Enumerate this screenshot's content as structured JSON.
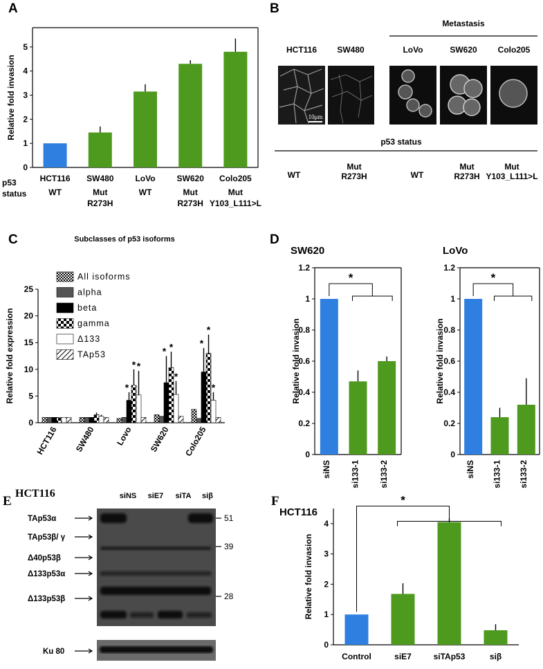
{
  "panel_labels": [
    "A",
    "B",
    "C",
    "D",
    "E",
    "F"
  ],
  "chart_data": [
    {
      "type": "bar",
      "categories": [
        "HCT116",
        "SW480",
        "LoVo",
        "SW620",
        "Colo205"
      ],
      "values": [
        1,
        1.45,
        3.15,
        4.3,
        4.8
      ],
      "errors": [
        0,
        0.25,
        0.3,
        0.15,
        0.55
      ],
      "colors": [
        "#2e7fe0",
        "#4e9a1f",
        "#4e9a1f",
        "#4e9a1f",
        "#4e9a1f"
      ],
      "ylabel": "Relative fold invasion",
      "ylim": [
        0,
        5.8
      ],
      "yticks": [
        0,
        1,
        2,
        3,
        4,
        5
      ],
      "row_label": [
        "p53",
        "status"
      ],
      "status": [
        [
          "WT"
        ],
        [
          "Mut",
          "R273H"
        ],
        [
          "WT"
        ],
        [
          "Mut",
          "R273H"
        ],
        [
          "Mut",
          "Y103_L111>L"
        ]
      ]
    },
    {
      "type": "grouped_bar",
      "title": "Subclasses of p53 isoforms",
      "categories": [
        "HCT116",
        "SW480",
        "Lovo",
        "SW620",
        "Colo205"
      ],
      "ylabel": "Relative fold expression",
      "ylim": [
        0,
        25
      ],
      "yticks": [
        0,
        5,
        10,
        15,
        20,
        25
      ],
      "series": [
        {
          "name": "All isoforms",
          "pattern": "checker-small",
          "color": "#000000",
          "values": [
            1,
            1,
            0.8,
            1.5,
            2.5
          ],
          "errors": [
            0,
            0,
            0,
            0,
            0
          ],
          "annotations": [
            null,
            null,
            null,
            null,
            null
          ]
        },
        {
          "name": "alpha",
          "pattern": "solid",
          "color": "#555555",
          "values": [
            1,
            1,
            1,
            1.2,
            0.8
          ],
          "errors": [
            0,
            0,
            0,
            0,
            0
          ],
          "annotations": [
            null,
            null,
            null,
            null,
            null
          ]
        },
        {
          "name": "beta",
          "pattern": "solid",
          "color": "#000000",
          "values": [
            1,
            1,
            4.2,
            7.5,
            9.5
          ],
          "errors": [
            0,
            0,
            1.5,
            5,
            4.5
          ],
          "annotations": [
            null,
            null,
            "*",
            "*",
            "*"
          ]
        },
        {
          "name": "gamma",
          "pattern": "checker-large",
          "color": "#000000",
          "values": [
            1,
            1.5,
            7,
            10.3,
            13
          ],
          "errors": [
            0,
            0.4,
            3,
            3,
            3.5
          ],
          "annotations": [
            null,
            null,
            "*",
            "*",
            "*"
          ]
        },
        {
          "name": "Δ133",
          "pattern": "solid",
          "color": "#ffffff",
          "values": [
            1,
            1.2,
            5.2,
            5.3,
            4.2
          ],
          "errors": [
            0,
            0.3,
            4.5,
            2.5,
            1.5
          ],
          "annotations": [
            null,
            null,
            "*",
            "*",
            "*"
          ]
        },
        {
          "name": "TAp53",
          "pattern": "hatch",
          "color": "#000000",
          "values": [
            1,
            1,
            1,
            1.2,
            1
          ],
          "errors": [
            0,
            0,
            0,
            0,
            0
          ],
          "annotations": [
            null,
            null,
            null,
            null,
            null
          ]
        }
      ]
    },
    {
      "type": "bar",
      "title": "SW620",
      "categories": [
        "siNS",
        "si133-1",
        "si133-2"
      ],
      "values": [
        1,
        0.47,
        0.6
      ],
      "errors": [
        0,
        0.07,
        0.03
      ],
      "colors": [
        "#2e7fe0",
        "#4e9a1f",
        "#4e9a1f"
      ],
      "annotation": "*",
      "ylabel": "Relative fold invasion",
      "ylim": [
        0,
        1.2
      ],
      "yticks": [
        0,
        0.2,
        0.4,
        0.6,
        0.8,
        1,
        1.2
      ]
    },
    {
      "type": "bar",
      "title": "LoVo",
      "categories": [
        "siNS",
        "si133-1",
        "si133-2"
      ],
      "values": [
        1,
        0.24,
        0.32
      ],
      "errors": [
        0,
        0.06,
        0.17
      ],
      "colors": [
        "#2e7fe0",
        "#4e9a1f",
        "#4e9a1f"
      ],
      "annotation": "*",
      "ylabel": "Relative fold invasion",
      "ylim": [
        0,
        1.2
      ],
      "yticks": [
        0,
        0.2,
        0.4,
        0.6,
        0.8,
        1,
        1.2
      ]
    },
    {
      "type": "bar",
      "title": "HCT116",
      "categories": [
        "Control",
        "siE7",
        "siTAp53",
        "siβ"
      ],
      "values": [
        1,
        1.68,
        4.05,
        0.48
      ],
      "errors": [
        0,
        0.35,
        0.12,
        0.2
      ],
      "colors": [
        "#2e7fe0",
        "#4e9a1f",
        "#4e9a1f",
        "#4e9a1f"
      ],
      "annotation": "*",
      "ylabel": "Relative fold invasion",
      "ylim": [
        0,
        4.5
      ],
      "yticks": [
        0,
        1,
        2,
        3,
        4
      ]
    }
  ],
  "panel_b": {
    "title": "Metastasis",
    "lines": [
      "HCT116",
      "SW480",
      "LoVo",
      "SW620",
      "Colo205"
    ],
    "scale": "10μm",
    "status_title": "p53 status",
    "status": [
      [
        "WT"
      ],
      [
        "Mut",
        "R273H"
      ],
      [
        "WT"
      ],
      [
        "Mut",
        "R273H"
      ],
      [
        "Mut",
        "Y103_L111>L"
      ]
    ]
  },
  "panel_e": {
    "cell": "HCT116",
    "lanes": [
      "siNS",
      "siE7",
      "siTA",
      "siβ"
    ],
    "bands": [
      "TAp53α",
      "TAp53β/ γ",
      "Δ40p53β",
      "Δ133p53α",
      "Δ133p53β"
    ],
    "markers": [
      "51",
      "39",
      "28"
    ],
    "loading": "Ku 80"
  }
}
